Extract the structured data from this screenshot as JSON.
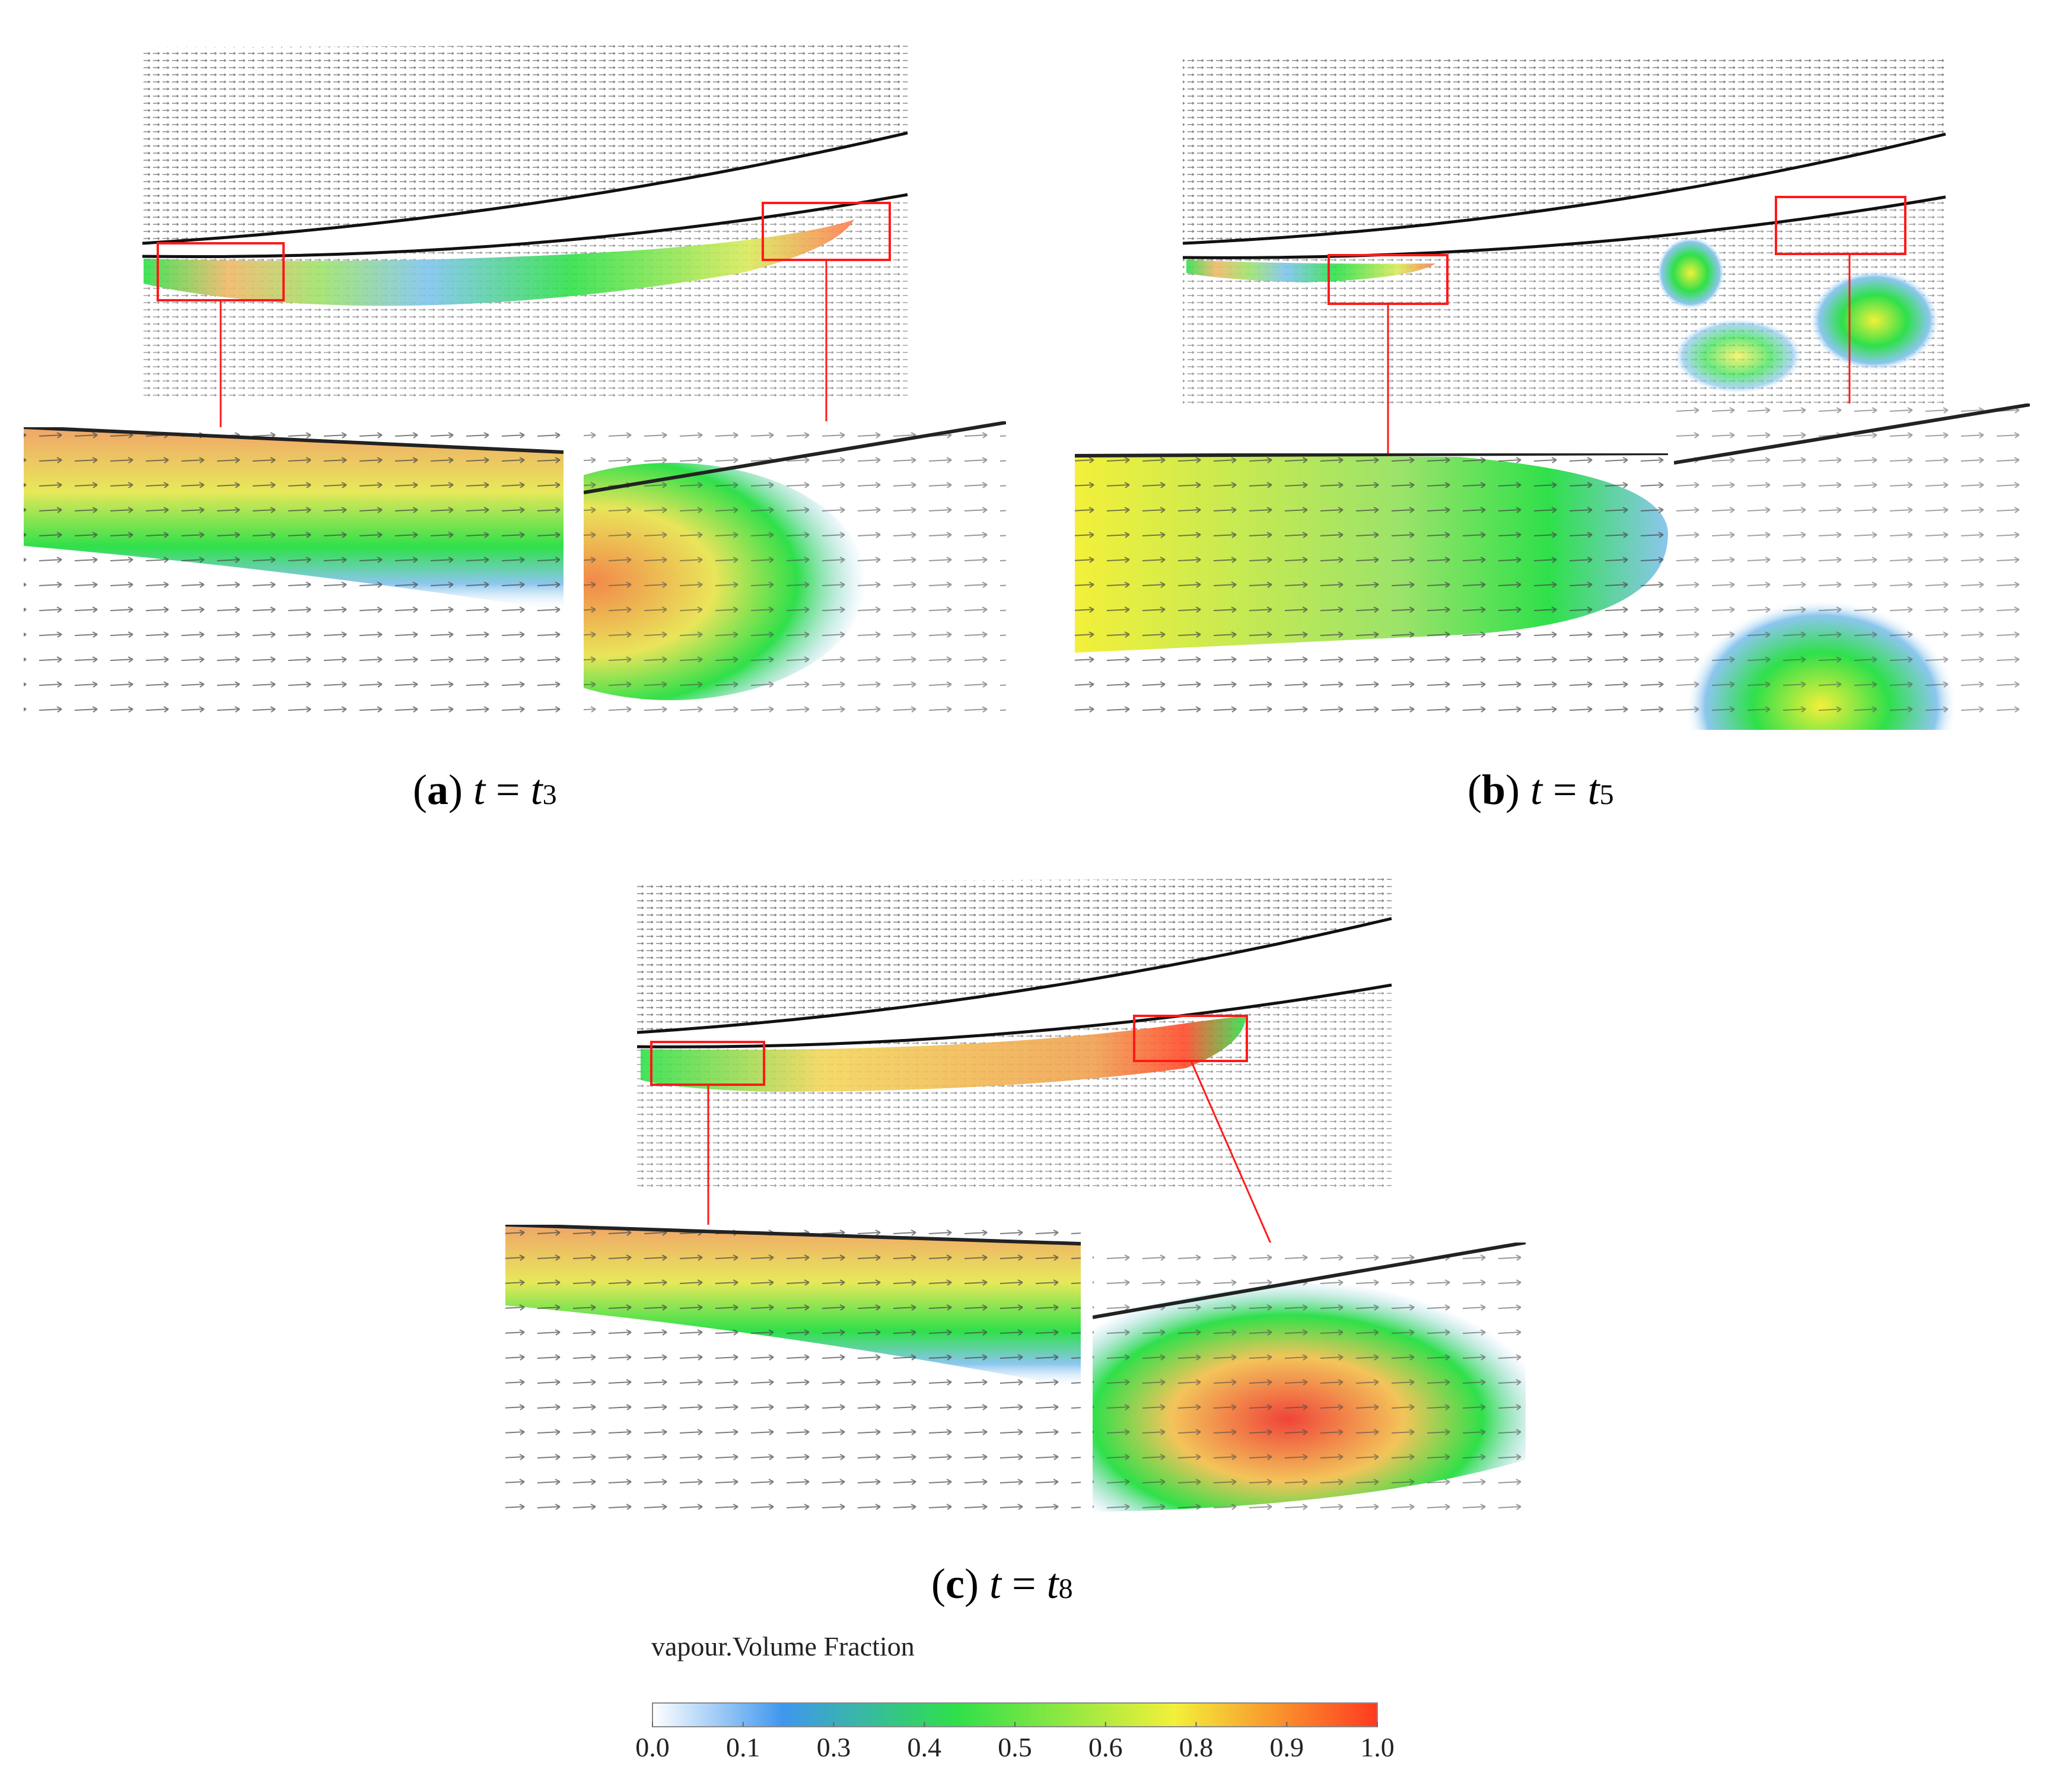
{
  "panels": [
    {
      "id": "a",
      "label": "a",
      "var": "t",
      "eq": "=",
      "time": "t",
      "sub": "3"
    },
    {
      "id": "b",
      "label": "b",
      "var": "t",
      "eq": "=",
      "time": "t",
      "sub": "5"
    },
    {
      "id": "c",
      "label": "c",
      "var": "t",
      "eq": "=",
      "time": "t",
      "sub": "8"
    }
  ],
  "colorbar": {
    "title": "vapour.Volume Fraction",
    "ticks": [
      "0.0",
      "0.1",
      "0.3",
      "0.4",
      "0.5",
      "0.6",
      "0.8",
      "0.9",
      "1.0"
    ],
    "tick_values": [
      0.0,
      0.125,
      0.25,
      0.375,
      0.5,
      0.625,
      0.75,
      0.875,
      1.0
    ],
    "min": 0.0,
    "max": 1.0,
    "colors": [
      "#ffffff",
      "#3f97ee",
      "#2fe04a",
      "#f3f03a",
      "#ff3a20"
    ]
  },
  "colors": {
    "highlight_box": "#ff1a1a",
    "vector": "#333333"
  }
}
